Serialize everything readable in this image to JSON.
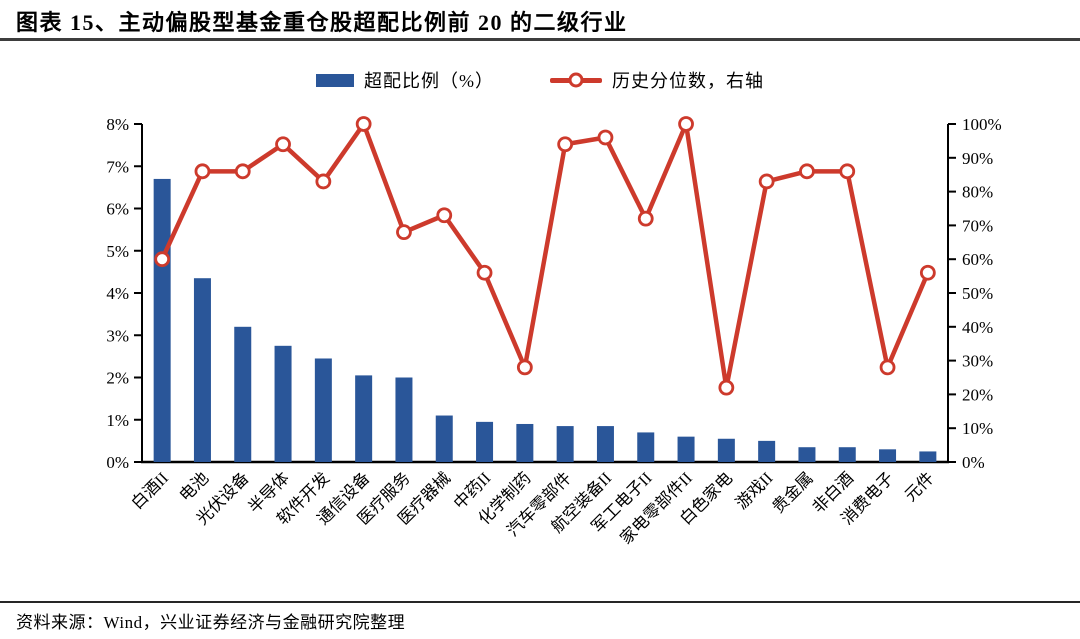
{
  "header": {
    "title": "图表 15、主动偏股型基金重仓股超配比例前 20 的二级行业"
  },
  "footer": {
    "source": "资料来源：Wind，兴业证券经济与金融研究院整理"
  },
  "colors": {
    "bar_blue": "#2A5699",
    "line_red": "#CD3A2C",
    "axis_black": "#000000",
    "rule_gray": "#3d3d3d"
  },
  "chart_data": {
    "type": "bar",
    "subtype": "bar-line-combo-dual-axis",
    "title": "",
    "grid": false,
    "legend_position": "top",
    "categories": [
      "白酒II",
      "电池",
      "光伏设备",
      "半导体",
      "软件开发",
      "通信设备",
      "医疗服务",
      "医疗器械",
      "中药II",
      "化学制药",
      "汽车零部件",
      "航空装备II",
      "军工电子II",
      "家电零部件II",
      "白色家电",
      "游戏II",
      "贵金属",
      "非白酒",
      "消费电子",
      "元件"
    ],
    "series": [
      {
        "name": "超配比例（%）",
        "type": "bar",
        "axis": "left",
        "color": "#2A5699",
        "values": [
          6.7,
          4.35,
          3.2,
          2.75,
          2.45,
          2.05,
          2.0,
          1.1,
          0.95,
          0.9,
          0.85,
          0.85,
          0.7,
          0.6,
          0.55,
          0.5,
          0.35,
          0.35,
          0.3,
          0.25
        ]
      },
      {
        "name": "历史分位数，右轴",
        "type": "line",
        "axis": "right",
        "color": "#CD3A2C",
        "marker": "circle-open",
        "values": [
          60,
          86,
          86,
          94,
          83,
          100,
          68,
          73,
          56,
          28,
          94,
          96,
          72,
          100,
          22,
          83,
          86,
          86,
          28,
          56
        ]
      }
    ],
    "left_axis": {
      "min": 0,
      "max": 8,
      "step": 1,
      "suffix": "%"
    },
    "right_axis": {
      "min": 0,
      "max": 100,
      "step": 10,
      "suffix": "%"
    }
  }
}
